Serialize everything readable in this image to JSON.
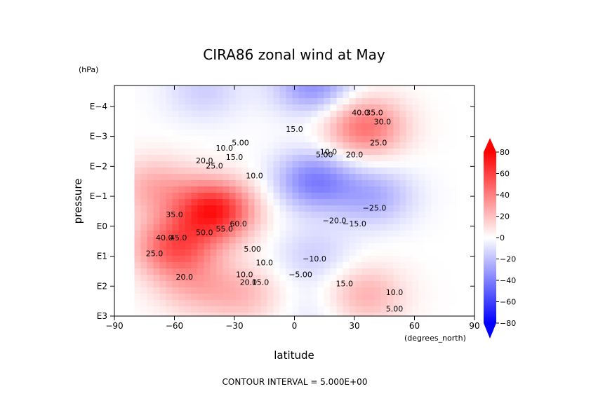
{
  "chart_data": {
    "type": "heatmap",
    "title": "CIRA86 zonal wind at May",
    "xlabel": "latitude",
    "x_units": "(degrees_north)",
    "ylabel": "pressure",
    "y_units": "(hPa)",
    "xlim": [
      -90,
      90
    ],
    "x_ticks": [
      -90,
      -60,
      -30,
      0,
      30,
      60,
      90
    ],
    "x_tick_labels": [
      "−90",
      "−60",
      "−30",
      "0",
      "30",
      "60",
      "90"
    ],
    "y_scale": "log",
    "y_ticks": [
      1000,
      100,
      10,
      1,
      0.1,
      0.01,
      0.001,
      0.0001
    ],
    "y_tick_labels": [
      "E3",
      "E2",
      "E1",
      "E0",
      "E−1",
      "E−2",
      "E−3",
      "E−4"
    ],
    "colorbar": {
      "ticks": [
        80,
        60,
        40,
        20,
        0,
        -20,
        -40,
        -60,
        -80
      ],
      "tick_labels": [
        "80",
        "60",
        "40",
        "20",
        "0",
        "−20",
        "−40",
        "−60",
        "−80"
      ],
      "range": [
        -80,
        80
      ],
      "colors": {
        "negative": "#0000ff",
        "zero": "#ffffff",
        "positive": "#ff0000"
      }
    },
    "contour_interval_text": "CONTOUR INTERVAL = 5.000E+00",
    "features": [
      {
        "lat": -40,
        "pressure": 0.3,
        "value": 70
      },
      {
        "lat": -70,
        "pressure": 0.05,
        "value": 25
      },
      {
        "lat": -60,
        "pressure": 5,
        "value": 50
      },
      {
        "lat": -50,
        "pressure": 100,
        "value": 20
      },
      {
        "lat": -45,
        "pressure": 3e-05,
        "value": -15
      },
      {
        "lat": 10,
        "pressure": 2e-05,
        "value": -35
      },
      {
        "lat": 35,
        "pressure": 0.0005,
        "value": 45
      },
      {
        "lat": 10,
        "pressure": 0.03,
        "value": -40
      },
      {
        "lat": 40,
        "pressure": 0.1,
        "value": -25
      },
      {
        "lat": 10,
        "pressure": 10,
        "value": -15
      },
      {
        "lat": 35,
        "pressure": 200,
        "value": 25
      },
      {
        "lat": -25,
        "pressure": 200,
        "value": 20
      },
      {
        "lat": 10,
        "pressure": 800,
        "value": -8
      }
    ],
    "contour_labels": [
      {
        "text": "40.0",
        "lat": 33,
        "pressure": 0.0002
      },
      {
        "text": "35.0",
        "lat": 40,
        "pressure": 0.0002
      },
      {
        "text": "30.0",
        "lat": 44,
        "pressure": 0.0004
      },
      {
        "text": "15.0",
        "lat": 0,
        "pressure": 0.0007
      },
      {
        "text": "25.0",
        "lat": 42,
        "pressure": 0.002
      },
      {
        "text": "20.0",
        "lat": 30,
        "pressure": 0.005
      },
      {
        "text": "5.00",
        "lat": -27,
        "pressure": 0.002
      },
      {
        "text": "10.0",
        "lat": -35,
        "pressure": 0.003
      },
      {
        "text": "15.0",
        "lat": -30,
        "pressure": 0.006
      },
      {
        "text": "20.0",
        "lat": -45,
        "pressure": 0.008
      },
      {
        "text": "25.0",
        "lat": -40,
        "pressure": 0.012
      },
      {
        "text": "10.0",
        "lat": -20,
        "pressure": 0.025
      },
      {
        "text": "5.00",
        "lat": 15,
        "pressure": 0.005
      },
      {
        "text": "10.0",
        "lat": 17,
        "pressure": 0.004
      },
      {
        "text": "35.0",
        "lat": -60,
        "pressure": 0.5
      },
      {
        "text": "40.0",
        "lat": -65,
        "pressure": 3
      },
      {
        "text": "45.0",
        "lat": -58,
        "pressure": 3
      },
      {
        "text": "50.0",
        "lat": -45,
        "pressure": 2
      },
      {
        "text": "55.0",
        "lat": -35,
        "pressure": 1.5
      },
      {
        "text": "60.0",
        "lat": -28,
        "pressure": 1
      },
      {
        "text": "25.0",
        "lat": -70,
        "pressure": 10
      },
      {
        "text": "20.0",
        "lat": -55,
        "pressure": 60
      },
      {
        "text": "20.0",
        "lat": -23,
        "pressure": 90
      },
      {
        "text": "15.0",
        "lat": -17,
        "pressure": 90
      },
      {
        "text": "10.0",
        "lat": -25,
        "pressure": 50
      },
      {
        "text": "10.0",
        "lat": -15,
        "pressure": 20
      },
      {
        "text": "5.00",
        "lat": -21,
        "pressure": 7
      },
      {
        "text": "−10.0",
        "lat": 10,
        "pressure": 15
      },
      {
        "text": "−5.00",
        "lat": 3,
        "pressure": 50
      },
      {
        "text": "−20.0",
        "lat": 20,
        "pressure": 0.8
      },
      {
        "text": "−15.0",
        "lat": 30,
        "pressure": 1
      },
      {
        "text": "−25.0",
        "lat": 40,
        "pressure": 0.3
      },
      {
        "text": "15.0",
        "lat": 25,
        "pressure": 100
      },
      {
        "text": "10.0",
        "lat": 50,
        "pressure": 200
      },
      {
        "text": "5.00",
        "lat": 50,
        "pressure": 700
      }
    ]
  }
}
